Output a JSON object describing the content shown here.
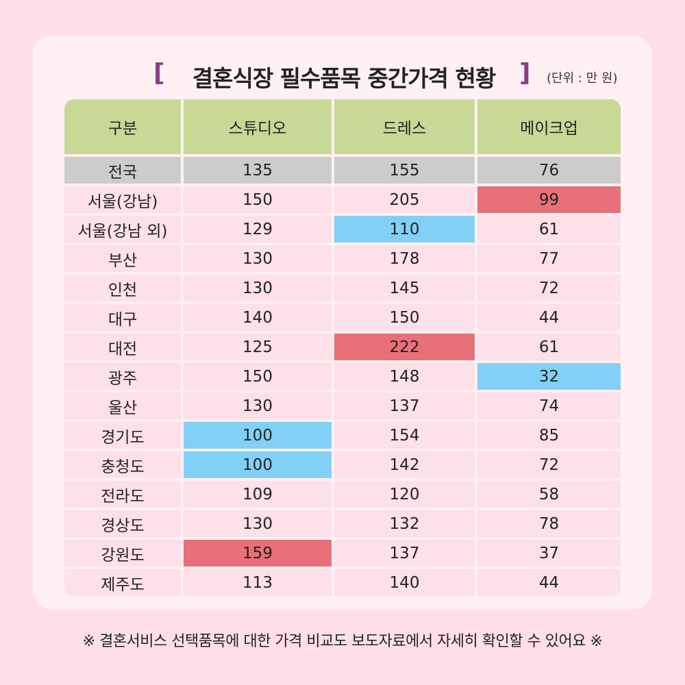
{
  "title": "결혼식장 필수품목 중간가격 현황",
  "bracket_left": "[",
  "bracket_right": "]",
  "unit": "(단위 : 만 원)",
  "headers": [
    "구분",
    "스튜디오",
    "드레스",
    "메이크업"
  ],
  "rows": [
    {
      "region": "전국",
      "studio": "135",
      "dress": "155",
      "makeup": "76"
    },
    {
      "region": "서울(강남)",
      "studio": "150",
      "dress": "205",
      "makeup": "99"
    },
    {
      "region": "서울(강남 외)",
      "studio": "129",
      "dress": "110",
      "makeup": "61"
    },
    {
      "region": "부산",
      "studio": "130",
      "dress": "178",
      "makeup": "77"
    },
    {
      "region": "인천",
      "studio": "130",
      "dress": "145",
      "makeup": "72"
    },
    {
      "region": "대구",
      "studio": "140",
      "dress": "150",
      "makeup": "44"
    },
    {
      "region": "대전",
      "studio": "125",
      "dress": "222",
      "makeup": "61"
    },
    {
      "region": "광주",
      "studio": "150",
      "dress": "148",
      "makeup": "32"
    },
    {
      "region": "울산",
      "studio": "130",
      "dress": "137",
      "makeup": "74"
    },
    {
      "region": "경기도",
      "studio": "100",
      "dress": "154",
      "makeup": "85"
    },
    {
      "region": "충청도",
      "studio": "100",
      "dress": "142",
      "makeup": "72"
    },
    {
      "region": "전라도",
      "studio": "109",
      "dress": "120",
      "makeup": "58"
    },
    {
      "region": "경상도",
      "studio": "130",
      "dress": "132",
      "makeup": "78"
    },
    {
      "region": "강원도",
      "studio": "159",
      "dress": "137",
      "makeup": "37"
    },
    {
      "region": "제주도",
      "studio": "113",
      "dress": "140",
      "makeup": "44"
    }
  ],
  "highlights": {
    "high_color": "#e87079",
    "low_color": "#82d0f5"
  },
  "footnote": "※ 결혼서비스 선택품목에 대한 가격 비교도 보도자료에서 자세히 확인할 수 있어요 ※"
}
